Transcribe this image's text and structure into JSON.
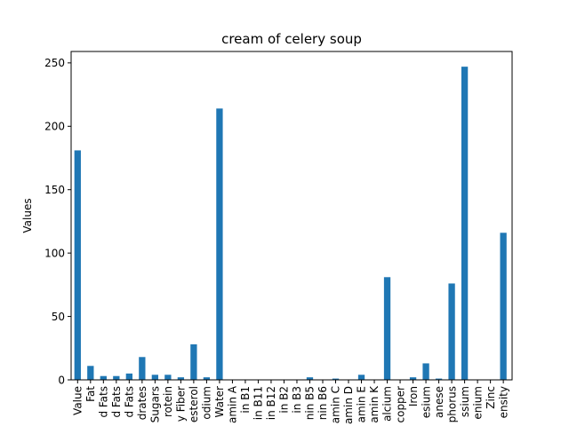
{
  "chart_data": {
    "type": "bar",
    "title": "cream of celery soup",
    "xlabel": "",
    "ylabel": "Values",
    "ylim": [
      0,
      259
    ],
    "yticks": [
      0,
      50,
      100,
      150,
      200,
      250
    ],
    "grid": false,
    "bar_color": "#1f77b4",
    "categories": [
      "Value",
      "Fat",
      "d Fats",
      "d Fats",
      "d Fats",
      "drates",
      "Sugars",
      "rotein",
      "y Fiber",
      "esterol",
      "odium",
      "Water",
      "amin A",
      "in B1",
      "in B11",
      "in B12",
      "in B2",
      "in B3",
      "nin B5",
      "nin B6",
      "amin C",
      "amin D",
      "amin E",
      "amin K",
      "alcium",
      "copper",
      "Iron",
      "esium",
      "anese",
      "phorus",
      "ssium",
      "enium",
      "Zinc",
      "ensity"
    ],
    "values": [
      181,
      11,
      3,
      3,
      5,
      18,
      4,
      4,
      2,
      28,
      2,
      214,
      0,
      0,
      0,
      0,
      0,
      0,
      2,
      0,
      1,
      0,
      4,
      0,
      81,
      0,
      2,
      13,
      1,
      76,
      247,
      0,
      0,
      116
    ]
  }
}
